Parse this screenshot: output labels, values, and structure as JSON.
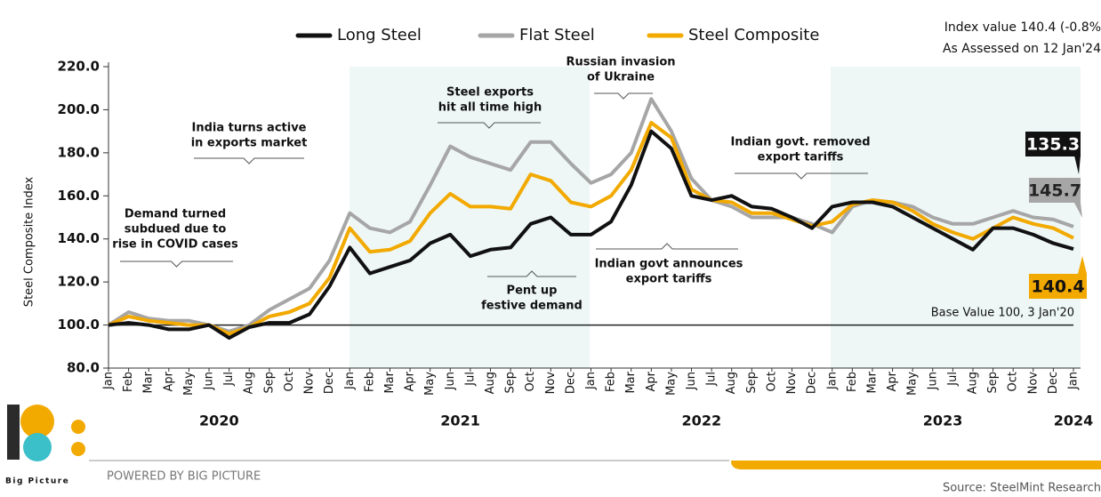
{
  "chart_data": {
    "type": "line",
    "header": [
      "Index value 140.4 (-0.8%",
      "As Assessed on 12 Jan'24"
    ],
    "y_label": "Steel Composite Index",
    "categories": [
      "Jan",
      "Feb",
      "Mar",
      "Apr",
      "May",
      "Jun",
      "Jul",
      "Aug",
      "Sep",
      "Oct",
      "Nov",
      "Dec",
      "Jan",
      "Feb",
      "Mar",
      "Apr",
      "May",
      "Jun",
      "Jul",
      "Aug",
      "Sep",
      "Oct",
      "Nov",
      "Dec",
      "Jan",
      "Feb",
      "Mar",
      "Apr",
      "May",
      "Jun",
      "Jul",
      "Aug",
      "Sep",
      "Oct",
      "Nov",
      "Dec",
      "Jan",
      "Feb",
      "Mar",
      "Apr",
      "May",
      "Jun",
      "Jul",
      "Aug",
      "Sep",
      "Oct",
      "Nov",
      "Dec",
      "Jan"
    ],
    "years": [
      "2020",
      "2021",
      "2022",
      "2023",
      "2024"
    ],
    "ylim": [
      80,
      220
    ],
    "yticks": [
      {
        "value": 80,
        "label": "80.0"
      },
      {
        "value": 100,
        "label": "100.0"
      },
      {
        "value": 120,
        "label": "120.0"
      },
      {
        "value": 140,
        "label": "140.0"
      },
      {
        "value": 160,
        "label": "160.0"
      },
      {
        "value": 180,
        "label": "180.0"
      },
      {
        "value": 200,
        "label": "200.0"
      },
      {
        "value": 220,
        "label": "220.0"
      }
    ],
    "series": [
      {
        "name": "Long Steel",
        "color": "#111111",
        "values": [
          100,
          101,
          100,
          98,
          98,
          100,
          94,
          99,
          101,
          101,
          105,
          118,
          136,
          124,
          127,
          130,
          138,
          142,
          132,
          135,
          136,
          147,
          150,
          142,
          142,
          148,
          165,
          190,
          182,
          160,
          158,
          160,
          155,
          154,
          150,
          145,
          155,
          157,
          157,
          155,
          150,
          145,
          140,
          135,
          145,
          145,
          142,
          138,
          135.3
        ]
      },
      {
        "name": "Flat Steel",
        "color": "#a6a6a6",
        "values": [
          100,
          106,
          103,
          102,
          102,
          100,
          97,
          100,
          107,
          112,
          117,
          130,
          152,
          145,
          143,
          148,
          165,
          183,
          178,
          175,
          172,
          185,
          185,
          175,
          166,
          170,
          180,
          205,
          190,
          168,
          158,
          155,
          150,
          150,
          150,
          147,
          143,
          155,
          158,
          157,
          155,
          150,
          147,
          147,
          150,
          153,
          150,
          149,
          145.7
        ]
      },
      {
        "name": "Steel Composite",
        "color": "#f2a900",
        "values": [
          100,
          104,
          102,
          101,
          100,
          100,
          96,
          99,
          104,
          106,
          110,
          122,
          145,
          134,
          135,
          139,
          152,
          161,
          155,
          155,
          154,
          170,
          167,
          157,
          155,
          160,
          172,
          194,
          187,
          163,
          158,
          157,
          152,
          152,
          149,
          146,
          148,
          156,
          158,
          157,
          153,
          147,
          143,
          140,
          145,
          150,
          147,
          145,
          140.4
        ]
      }
    ],
    "base_value": 100,
    "base_label": "Base Value 100, 3 Jan'20",
    "annotations": [
      [
        "Demand turned",
        "subdued due to",
        "rise in COVID cases"
      ],
      [
        "India turns active",
        "in exports market"
      ],
      [
        "Steel exports",
        "hit all time high"
      ],
      [
        "Russian invasion",
        "of Ukraine"
      ],
      [
        "Indian govt. removed",
        "export tariffs"
      ],
      [
        "Pent up",
        "festive demand"
      ],
      [
        "Indian govt announces",
        "export tariffs"
      ]
    ],
    "brand": "Big Picture",
    "powered": "POWERED BY BIG PICTURE",
    "source": "Source: SteelMint Research"
  }
}
